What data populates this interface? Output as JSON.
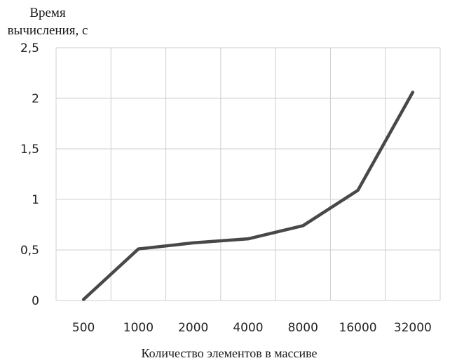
{
  "chart_data": {
    "type": "line",
    "ylabel_lines": [
      "Время",
      "вычисления, с"
    ],
    "xlabel": "Количество элементов в массиве",
    "categories": [
      "500",
      "1000",
      "2000",
      "4000",
      "8000",
      "16000",
      "32000"
    ],
    "series": [
      {
        "values": [
          0.01,
          0.51,
          0.57,
          0.61,
          0.74,
          1.09,
          2.06
        ]
      }
    ],
    "y_ticks": [
      "0",
      "0,5",
      "1",
      "1,5",
      "2",
      "2,5"
    ],
    "ylim": [
      0,
      2.5
    ],
    "grid": true,
    "line_color": "#484848",
    "grid_color": "#cfcfcf"
  }
}
